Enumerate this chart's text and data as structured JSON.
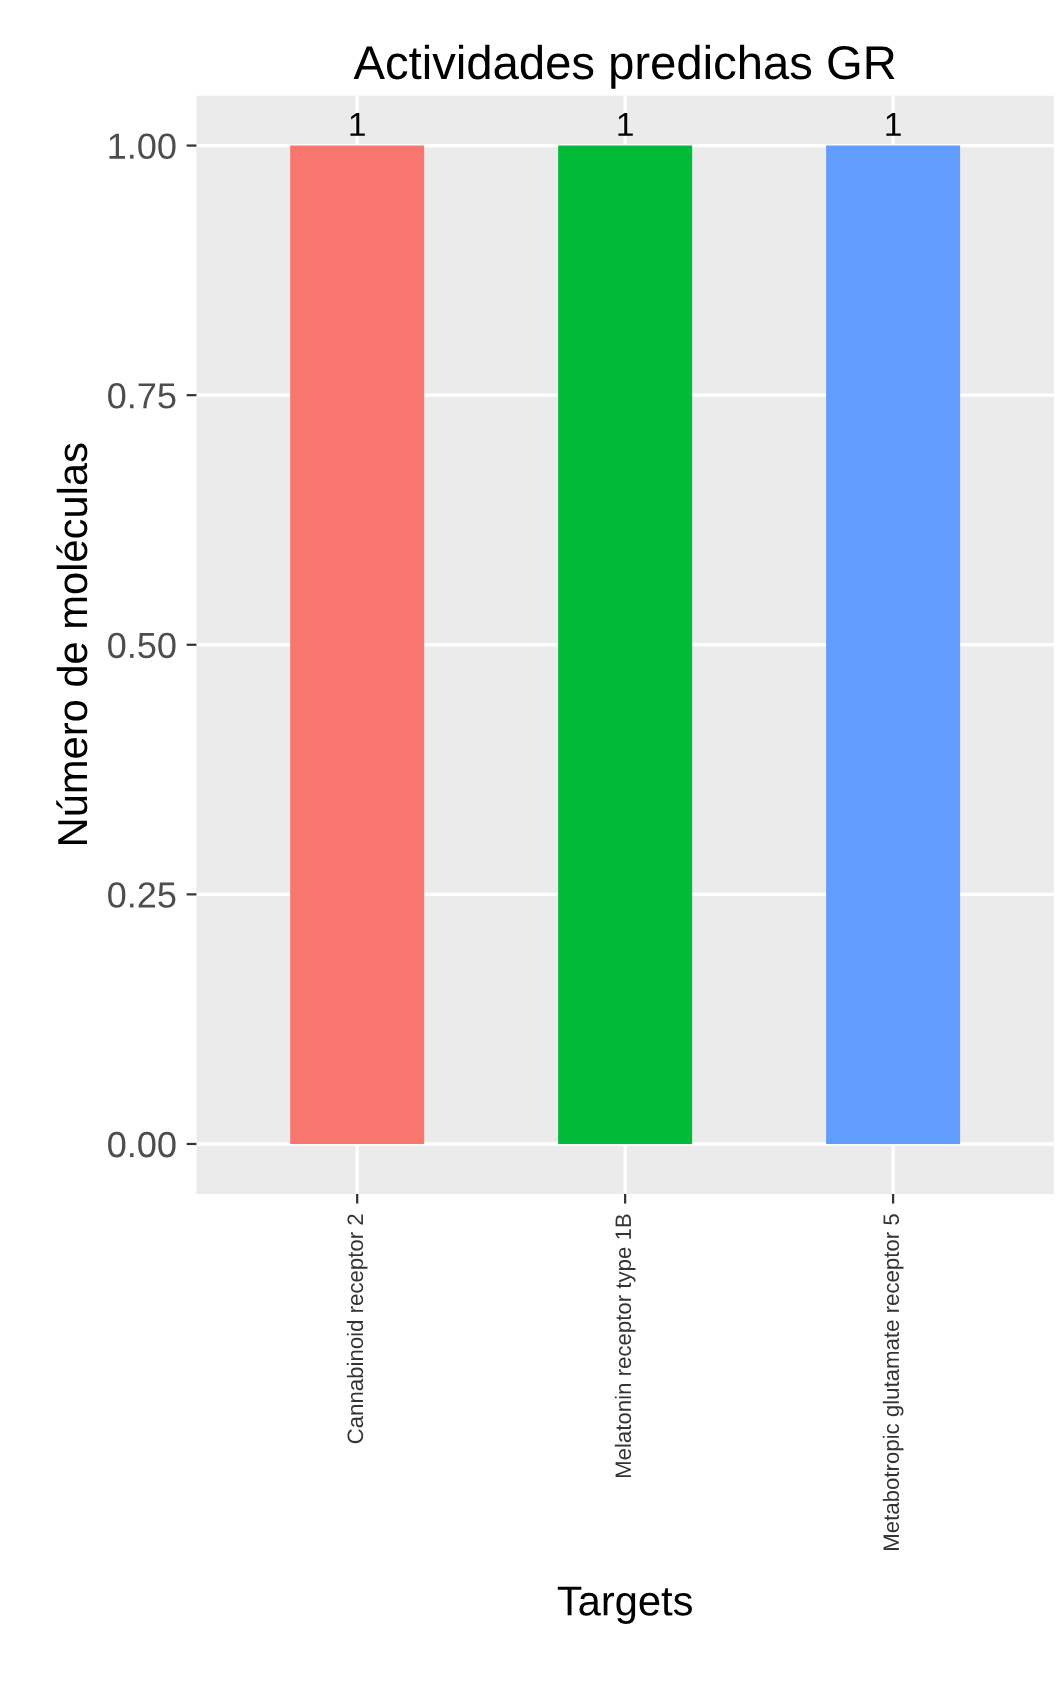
{
  "chart_data": {
    "type": "bar",
    "title": "Actividades predichas GR",
    "xlabel": "Targets",
    "ylabel": "Número de moléculas",
    "categories": [
      "Cannabinoid receptor 2",
      "Melatonin receptor type 1B",
      "Metabotropic glutamate receptor 5"
    ],
    "values": [
      1,
      1,
      1
    ],
    "colors": [
      "#f8766d",
      "#00ba38",
      "#619cff"
    ],
    "ylim": [
      -0.05,
      1.05
    ],
    "yticks": [
      {
        "value": 0,
        "label": "0.00"
      },
      {
        "value": 0.25,
        "label": "0.25"
      },
      {
        "value": 0.5,
        "label": "0.50"
      },
      {
        "value": 0.75,
        "label": "0.75"
      },
      {
        "value": 1,
        "label": "1.00"
      }
    ],
    "data_labels": true,
    "grid": true
  }
}
